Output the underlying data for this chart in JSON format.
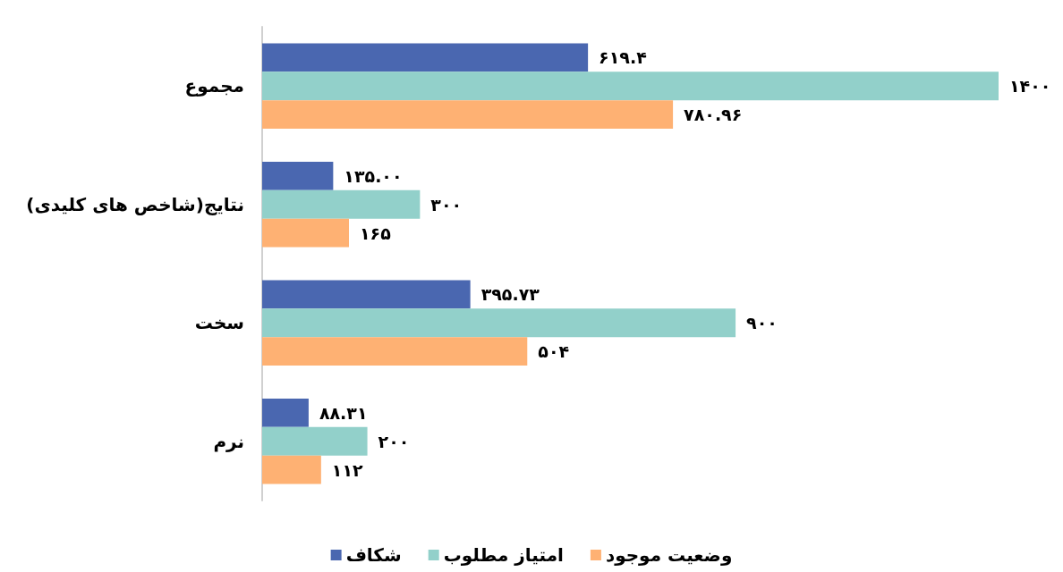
{
  "chart_data": {
    "type": "bar",
    "orientation": "horizontal",
    "categories": [
      "مجموع",
      "نتایج(شاخص های کلیدی)",
      "سخت",
      "نرم"
    ],
    "series": [
      {
        "name": "شکاف",
        "color": "#4a67b0",
        "values": [
          619.4,
          135,
          395.73,
          88.31
        ],
        "value_labels": [
          "۶۱۹.۴",
          "۱۳۵.۰۰",
          "۳۹۵.۷۳",
          "۸۸.۳۱"
        ]
      },
      {
        "name": "امتیاز مطلوب",
        "color": "#92d0ca",
        "values": [
          1400,
          300,
          900,
          200
        ],
        "value_labels": [
          "۱۴۰۰",
          "۳۰۰",
          "۹۰۰",
          "۲۰۰"
        ]
      },
      {
        "name": "وضعیت موجود",
        "color": "#feb173",
        "values": [
          780.96,
          165,
          504,
          112
        ],
        "value_labels": [
          "۷۸۰.۹۶",
          "۱۶۵",
          "۵۰۴",
          "۱۱۲"
        ]
      }
    ],
    "legend": "bottom"
  }
}
